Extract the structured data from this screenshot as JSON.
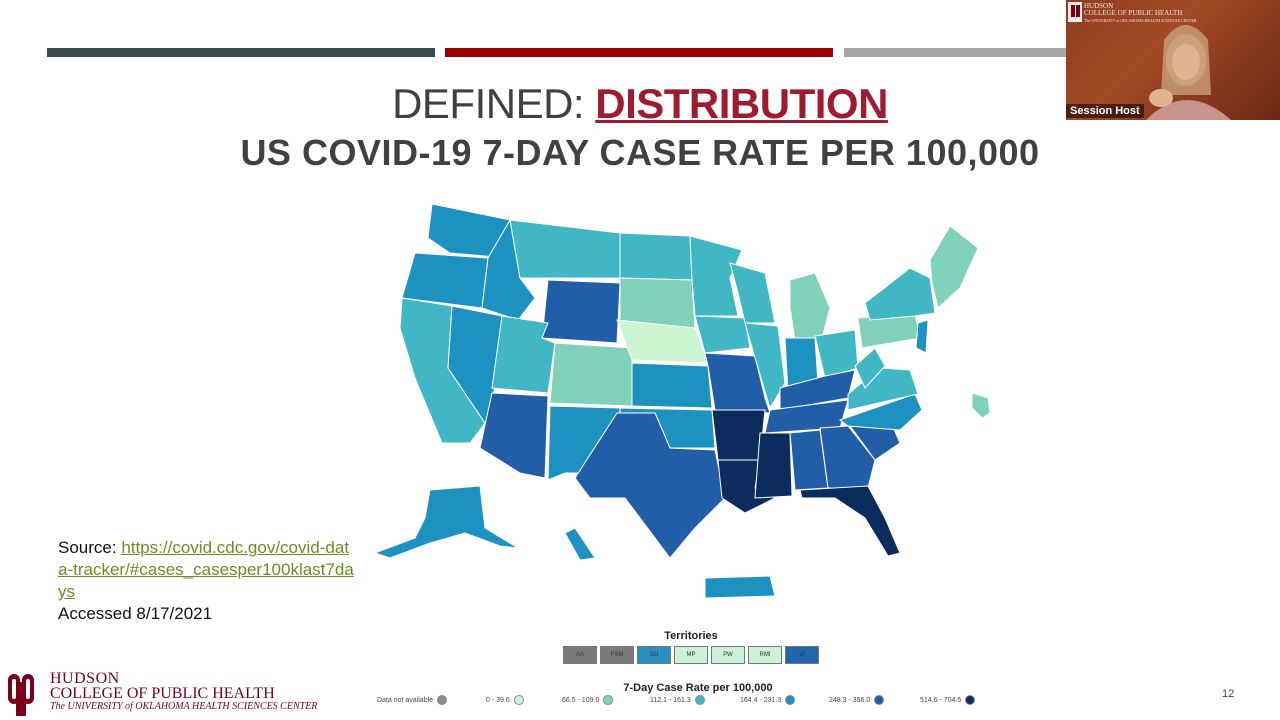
{
  "slide": {
    "title_prefix": "DEFINED: ",
    "title_accent": "DISTRIBUTION",
    "subtitle": "US COVID-19 7-DAY CASE RATE PER 100,000",
    "page_number": "12"
  },
  "source": {
    "label": "Source: ",
    "link_text": "https://covid.cdc.gov/covid-data-tracker/#cases_casesper100klast7days",
    "accessed": "Accessed 8/17/2021"
  },
  "territories": {
    "title": "Territories",
    "items": [
      {
        "code": "AS",
        "color": "#7a7a7a"
      },
      {
        "code": "FSM",
        "color": "#7a7a7a"
      },
      {
        "code": "GU",
        "color": "#2b8cbe"
      },
      {
        "code": "MP",
        "color": "#ccf2d8"
      },
      {
        "code": "PW",
        "color": "#ccf2d8"
      },
      {
        "code": "RMI",
        "color": "#ccf2d8"
      },
      {
        "code": "VI",
        "color": "#2166ac"
      }
    ]
  },
  "legend": {
    "title": "7-Day Case Rate per 100,000",
    "items": [
      {
        "label": "Data not available",
        "color": "#8c8c8c"
      },
      {
        "label": "0 - 39.6",
        "color": "#ccf5d2"
      },
      {
        "label": "66.5 - 109.0",
        "color": "#7fd1b9"
      },
      {
        "label": "112.1 - 161.3",
        "color": "#41b6c4"
      },
      {
        "label": "164.4 - 231.3",
        "color": "#1d91c0"
      },
      {
        "label": "248.3 - 356.0",
        "color": "#225ea8"
      },
      {
        "label": "514.6 - 704.5",
        "color": "#0c2c5e"
      }
    ]
  },
  "logo": {
    "line1": "HUDSON",
    "line2": "COLLEGE OF PUBLIC HEALTH",
    "line3": "The UNIVERSITY of OKLAHOMA HEALTH SCIENCES CENTER"
  },
  "video": {
    "participant_name": "Session Host",
    "logo_line1": "HUDSON",
    "logo_line2": "COLLEGE OF PUBLIC HEALTH",
    "logo_line3": "The UNIVERSITY of OKLAHOMA HEALTH SCIENCES CENTER"
  },
  "colors": {
    "c0": "#ccf5d2",
    "c1": "#7fd1b9",
    "c2": "#41b6c4",
    "c3": "#1d91c0",
    "c4": "#225ea8",
    "c5": "#0c2c5e"
  }
}
